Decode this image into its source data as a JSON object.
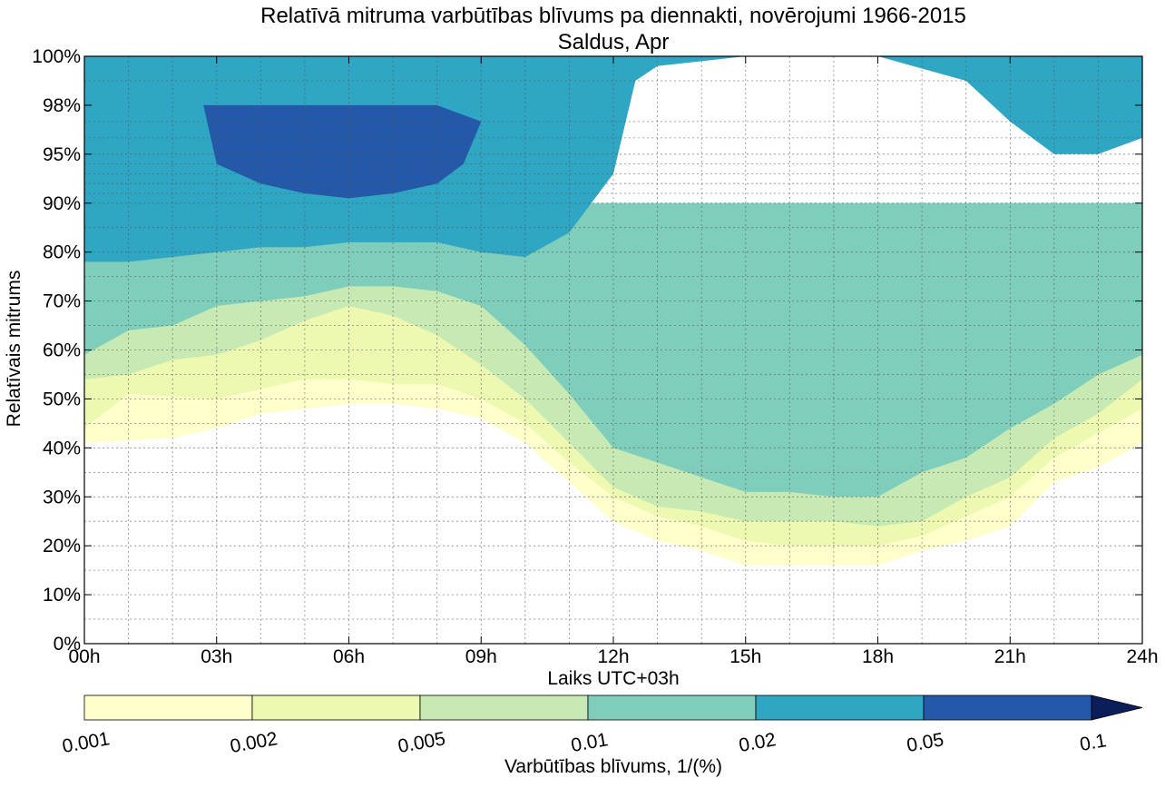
{
  "chart_data": {
    "type": "contourf",
    "title": "Relatīvā mitruma varbūtības blīvums pa diennakti, novērojumi 1966-2015",
    "subtitle": "Saldus, Apr",
    "xlabel": "Laiks UTC+03h",
    "ylabel": "Relatīvais mitrums",
    "xlim": [
      0,
      24
    ],
    "x_ticks": [
      {
        "value": 0,
        "label": "00h"
      },
      {
        "value": 3,
        "label": "03h"
      },
      {
        "value": 6,
        "label": "06h"
      },
      {
        "value": 9,
        "label": "09h"
      },
      {
        "value": 12,
        "label": "12h"
      },
      {
        "value": 15,
        "label": "15h"
      },
      {
        "value": 18,
        "label": "18h"
      },
      {
        "value": 21,
        "label": "21h"
      },
      {
        "value": 24,
        "label": "24h"
      }
    ],
    "y_ticks": [
      {
        "value": 0,
        "label": "0%"
      },
      {
        "value": 10,
        "label": "10%"
      },
      {
        "value": 20,
        "label": "20%"
      },
      {
        "value": 30,
        "label": "30%"
      },
      {
        "value": 40,
        "label": "40%"
      },
      {
        "value": 50,
        "label": "50%"
      },
      {
        "value": 60,
        "label": "60%"
      },
      {
        "value": 70,
        "label": "70%"
      },
      {
        "value": 80,
        "label": "80%"
      },
      {
        "value": 90,
        "label": "90%"
      },
      {
        "value": 95,
        "label": "95%"
      },
      {
        "value": 98,
        "label": "98%"
      },
      {
        "value": 100,
        "label": "100%"
      }
    ],
    "grid": true,
    "colorbar": {
      "label": "Varbūtības blīvums, 1/(%)",
      "levels": [
        0.001,
        0.002,
        0.005,
        0.01,
        0.02,
        0.05,
        0.1
      ],
      "tick_labels": [
        "0.001",
        "0.002",
        "0.005",
        "0.01",
        "0.02",
        "0.05",
        "0.1"
      ],
      "colors": [
        "#ffffcc",
        "#edf8b1",
        "#c7e9b4",
        "#7fcdbb",
        "#2ea6c4",
        "#2458a8",
        "#0c1e5a"
      ],
      "extend": "max",
      "placement": "bottom"
    },
    "regions": [
      {
        "min_density": 0.001,
        "upper": [
          [
            0,
            90
          ],
          [
            24,
            90
          ]
        ],
        "lower": [
          [
            0,
            41
          ],
          [
            2,
            42
          ],
          [
            3,
            44
          ],
          [
            4,
            47
          ],
          [
            5,
            48
          ],
          [
            6,
            49
          ],
          [
            7,
            49
          ],
          [
            8,
            48
          ],
          [
            9,
            46
          ],
          [
            10,
            41
          ],
          [
            11,
            33
          ],
          [
            12,
            25
          ],
          [
            13,
            21
          ],
          [
            14,
            19
          ],
          [
            15,
            16
          ],
          [
            16,
            16
          ],
          [
            17,
            16
          ],
          [
            18,
            16
          ],
          [
            19,
            19
          ],
          [
            20,
            21
          ],
          [
            21,
            24
          ],
          [
            22,
            33
          ],
          [
            23,
            36
          ],
          [
            24,
            41
          ]
        ]
      },
      {
        "min_density": 0.002,
        "upper": [
          [
            0,
            90
          ],
          [
            24,
            90
          ]
        ],
        "lower": [
          [
            0,
            44
          ],
          [
            1,
            51
          ],
          [
            3,
            50
          ],
          [
            4,
            52
          ],
          [
            5,
            54
          ],
          [
            6,
            54
          ],
          [
            7,
            53
          ],
          [
            8,
            53
          ],
          [
            9,
            50
          ],
          [
            10,
            45
          ],
          [
            11,
            37
          ],
          [
            12,
            30
          ],
          [
            13,
            26
          ],
          [
            14,
            24
          ],
          [
            15,
            21
          ],
          [
            16,
            20
          ],
          [
            17,
            20
          ],
          [
            18,
            20
          ],
          [
            19,
            22
          ],
          [
            20,
            26
          ],
          [
            21,
            30
          ],
          [
            22,
            38
          ],
          [
            23,
            43
          ],
          [
            24,
            48
          ]
        ]
      },
      {
        "min_density": 0.005,
        "upper": [
          [
            0,
            90
          ],
          [
            24,
            90
          ]
        ],
        "lower": [
          [
            0,
            54
          ],
          [
            1,
            55
          ],
          [
            2,
            58
          ],
          [
            3,
            59
          ],
          [
            4,
            62
          ],
          [
            5,
            66
          ],
          [
            6,
            69
          ],
          [
            7,
            67
          ],
          [
            8,
            63
          ],
          [
            9,
            57
          ],
          [
            10,
            50
          ],
          [
            11,
            41
          ],
          [
            12,
            32
          ],
          [
            13,
            28
          ],
          [
            14,
            27
          ],
          [
            15,
            25
          ],
          [
            16,
            25
          ],
          [
            17,
            25
          ],
          [
            18,
            24
          ],
          [
            19,
            25
          ],
          [
            20,
            30
          ],
          [
            21,
            34
          ],
          [
            22,
            42
          ],
          [
            23,
            47
          ],
          [
            24,
            54
          ]
        ]
      },
      {
        "min_density": 0.01,
        "upper": [
          [
            0,
            90
          ],
          [
            24,
            90
          ]
        ],
        "lower": [
          [
            0,
            59
          ],
          [
            1,
            64
          ],
          [
            2,
            65
          ],
          [
            3,
            69
          ],
          [
            4,
            70
          ],
          [
            5,
            71
          ],
          [
            6,
            73
          ],
          [
            7,
            73
          ],
          [
            8,
            72
          ],
          [
            9,
            69
          ],
          [
            10,
            61
          ],
          [
            11,
            51
          ],
          [
            12,
            40
          ],
          [
            13,
            37
          ],
          [
            14,
            34
          ],
          [
            15,
            31
          ],
          [
            16,
            31
          ],
          [
            17,
            30
          ],
          [
            18,
            30
          ],
          [
            19,
            35
          ],
          [
            20,
            38
          ],
          [
            21,
            44
          ],
          [
            22,
            49
          ],
          [
            23,
            55
          ],
          [
            24,
            59
          ]
        ]
      },
      {
        "min_density": 0.02,
        "upper": [
          [
            0,
            100
          ],
          [
            24,
            100
          ]
        ],
        "lower": [
          [
            0,
            78
          ],
          [
            1,
            78
          ],
          [
            2,
            79
          ],
          [
            3,
            80
          ],
          [
            4,
            81
          ],
          [
            5,
            81
          ],
          [
            6,
            82
          ],
          [
            7,
            82
          ],
          [
            8,
            82
          ],
          [
            9,
            80
          ],
          [
            10,
            79
          ],
          [
            11,
            84
          ],
          [
            12,
            93
          ],
          [
            12.5,
            99
          ],
          [
            13,
            99.6
          ],
          [
            14,
            99.8
          ],
          [
            15,
            100
          ],
          [
            16,
            100
          ],
          [
            17,
            100
          ],
          [
            18,
            100
          ],
          [
            19,
            99.5
          ],
          [
            20,
            99
          ],
          [
            21,
            97
          ],
          [
            22,
            95
          ],
          [
            23,
            95
          ],
          [
            24,
            96
          ]
        ]
      },
      {
        "min_density": 0.05,
        "upper": [
          [
            2.7,
            98
          ],
          [
            4,
            98
          ],
          [
            5,
            98
          ],
          [
            6,
            98
          ],
          [
            7,
            98
          ],
          [
            8,
            98
          ],
          [
            9,
            97
          ]
        ],
        "lower": [
          [
            2.7,
            98
          ],
          [
            3,
            94
          ],
          [
            4,
            92
          ],
          [
            5,
            91
          ],
          [
            6,
            90.5
          ],
          [
            7,
            91
          ],
          [
            8,
            92
          ],
          [
            8.6,
            94
          ],
          [
            9,
            97
          ]
        ]
      }
    ]
  }
}
